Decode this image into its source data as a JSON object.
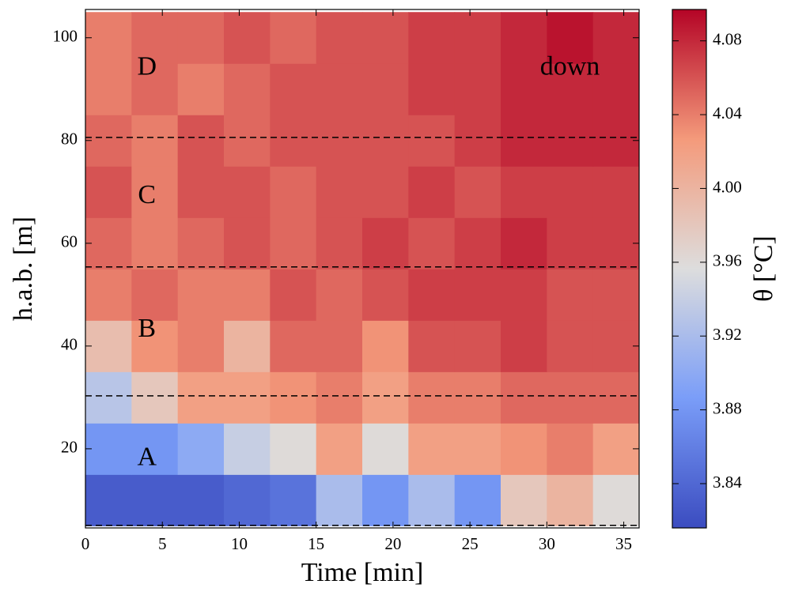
{
  "chart_data": {
    "type": "heatmap",
    "xlabel": "Time [min]",
    "ylabel": "h.a.b. [m]",
    "colorbar_label": "θ [°C]",
    "xlim": [
      0,
      36
    ],
    "ylim": [
      4.6,
      105.5
    ],
    "xticks": [
      0,
      5,
      10,
      15,
      20,
      25,
      30,
      35
    ],
    "yticks": [
      20,
      40,
      60,
      80,
      100
    ],
    "clim": [
      3.816,
      4.097
    ],
    "cticks": [
      3.84,
      3.88,
      3.92,
      3.96,
      {
        "value": 4,
        "label": "4.00"
      },
      4.04,
      4.08
    ],
    "colormap": [
      "#3b4cc0",
      "#7a9df8",
      "#dddddd",
      "#f49a7b",
      "#b40426"
    ],
    "xbins": [
      0,
      3,
      6,
      9,
      12,
      15,
      18,
      21,
      24,
      27,
      30,
      33,
      36
    ],
    "ybins": [
      5,
      15,
      25,
      35,
      45,
      55,
      65,
      75,
      85,
      95,
      105
    ],
    "z": [
      [
        3.83,
        3.83,
        3.83,
        3.84,
        3.85,
        3.92,
        3.88,
        3.92,
        3.88,
        3.98,
        4.0,
        3.96
      ],
      [
        3.88,
        3.88,
        3.9,
        3.94,
        3.96,
        4.02,
        3.96,
        4.02,
        4.02,
        4.03,
        4.04,
        4.02
      ],
      [
        3.93,
        3.98,
        4.02,
        4.02,
        4.03,
        4.04,
        4.02,
        4.04,
        4.04,
        4.05,
        4.05,
        4.05
      ],
      [
        3.99,
        4.03,
        4.04,
        4.0,
        4.05,
        4.05,
        4.03,
        4.06,
        4.06,
        4.07,
        4.06,
        4.06
      ],
      [
        4.04,
        4.05,
        4.04,
        4.04,
        4.06,
        4.05,
        4.06,
        4.07,
        4.07,
        4.07,
        4.06,
        4.06
      ],
      [
        4.05,
        4.04,
        4.05,
        4.06,
        4.05,
        4.06,
        4.07,
        4.06,
        4.07,
        4.08,
        4.07,
        4.07
      ],
      [
        4.06,
        4.04,
        4.06,
        4.06,
        4.05,
        4.06,
        4.06,
        4.07,
        4.06,
        4.07,
        4.07,
        4.07
      ],
      [
        4.05,
        4.04,
        4.06,
        4.05,
        4.06,
        4.06,
        4.06,
        4.06,
        4.07,
        4.08,
        4.08,
        4.08
      ],
      [
        4.04,
        4.05,
        4.04,
        4.05,
        4.06,
        4.06,
        4.06,
        4.07,
        4.07,
        4.08,
        4.08,
        4.08
      ],
      [
        4.04,
        4.05,
        4.05,
        4.06,
        4.05,
        4.06,
        4.06,
        4.07,
        4.07,
        4.08,
        4.09,
        4.08
      ]
    ],
    "hlines": [
      80.6,
      55.4,
      30.3,
      5.1
    ],
    "annotations": [
      {
        "text": "D",
        "x": 4,
        "y": 94
      },
      {
        "text": "C",
        "x": 4,
        "y": 69
      },
      {
        "text": "B",
        "x": 4,
        "y": 43
      },
      {
        "text": "A",
        "x": 4,
        "y": 18
      },
      {
        "text": "down",
        "x": 31.5,
        "y": 94
      }
    ]
  }
}
